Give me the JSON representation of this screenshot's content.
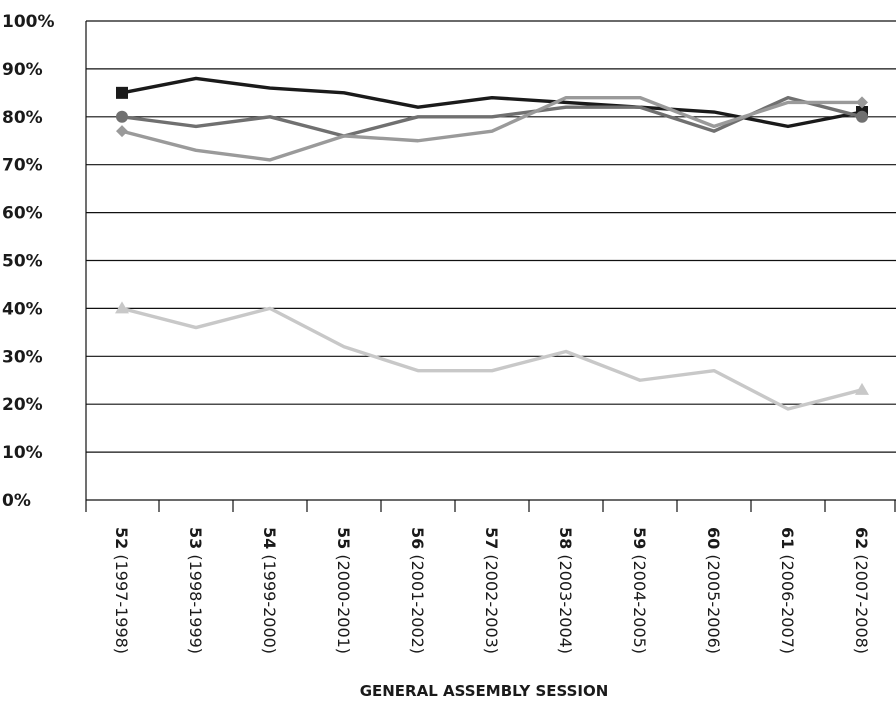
{
  "chart_data": {
    "type": "line",
    "title": "",
    "xlabel": "GENERAL ASSEMBLY SESSION",
    "ylabel": "",
    "ylim": [
      0,
      100
    ],
    "yticks": [
      "0%",
      "10%",
      "20%",
      "30%",
      "40%",
      "50%",
      "60%",
      "70%",
      "80%",
      "90%",
      "100%"
    ],
    "grid": true,
    "legend": "none",
    "categories": [
      {
        "session": "52",
        "years": "(1997-1998)"
      },
      {
        "session": "53",
        "years": "(1998-1999)"
      },
      {
        "session": "54",
        "years": "(1999-2000)"
      },
      {
        "session": "55",
        "years": "(2000-2001)"
      },
      {
        "session": "56",
        "years": "(2001-2002)"
      },
      {
        "session": "57",
        "years": "(2002-2003)"
      },
      {
        "session": "58",
        "years": "(2003-2004)"
      },
      {
        "session": "59",
        "years": "(2004-2005)"
      },
      {
        "session": "60",
        "years": "(2005-2006)"
      },
      {
        "session": "61",
        "years": "(2006-2007)"
      },
      {
        "session": "62",
        "years": "(2007-2008)"
      }
    ],
    "series": [
      {
        "values": [
          85,
          88,
          86,
          85,
          82,
          84,
          83,
          82,
          81,
          78,
          81
        ],
        "color": "#1a1a1a",
        "marker": "square"
      },
      {
        "values": [
          80,
          78,
          80,
          76,
          80,
          80,
          82,
          82,
          77,
          84,
          80
        ],
        "color": "#707070",
        "marker": "circle"
      },
      {
        "values": [
          77,
          73,
          71,
          76,
          75,
          77,
          84,
          84,
          78,
          83,
          83
        ],
        "color": "#9a9a9a",
        "marker": "diamond"
      },
      {
        "values": [
          40,
          36,
          40,
          32,
          27,
          27,
          31,
          25,
          27,
          19,
          23
        ],
        "color": "#c8c8c8",
        "marker": "triangle"
      }
    ]
  }
}
